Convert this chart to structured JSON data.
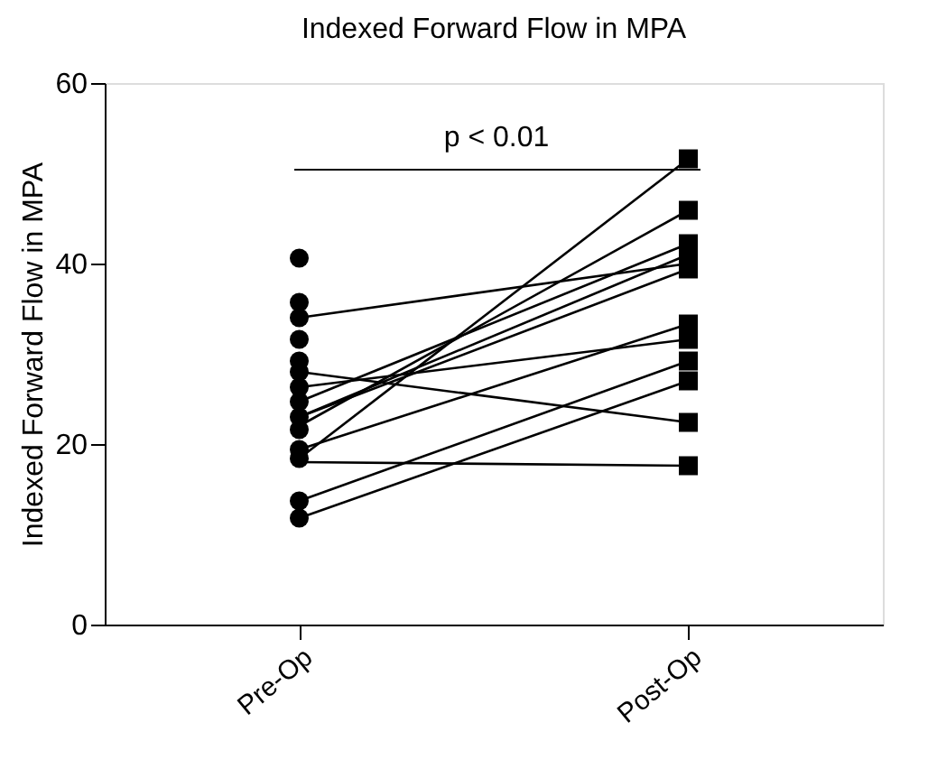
{
  "chart_data": {
    "type": "line",
    "title": "Indexed Forward Flow in MPA",
    "ylabel": "Indexed Forward Flow in MPA",
    "categories": [
      "Pre-Op",
      "Post-Op"
    ],
    "ylim": [
      0,
      60
    ],
    "yticks": [
      0,
      20,
      40,
      60
    ],
    "grid": false,
    "annotations": [
      "p < 0.01"
    ],
    "series": [
      {
        "color": "#000000",
        "marker": "none",
        "values": [
          34,
          40
        ]
      },
      {
        "color": "#000000",
        "marker": "none",
        "values": [
          28,
          22.4
        ]
      },
      {
        "color": "#000000",
        "marker": "none",
        "values": [
          26.3,
          31.6
        ]
      },
      {
        "color": "#000000",
        "marker": "none",
        "values": [
          24.7,
          42.2
        ]
      },
      {
        "color": "#000000",
        "marker": "none",
        "values": [
          23,
          41
        ]
      },
      {
        "color": "#000000",
        "marker": "none",
        "values": [
          23,
          39.4
        ]
      },
      {
        "color": "#000000",
        "marker": "none",
        "values": [
          22,
          45.9
        ]
      },
      {
        "color": "#000000",
        "marker": "none",
        "values": [
          19.4,
          33.3
        ]
      },
      {
        "color": "#000000",
        "marker": "none",
        "values": [
          18.4,
          51.6
        ]
      },
      {
        "color": "#000000",
        "marker": "none",
        "values": [
          18,
          17.6
        ]
      },
      {
        "color": "#000000",
        "marker": "none",
        "values": [
          13.7,
          29.2
        ]
      },
      {
        "color": "#000000",
        "marker": "none",
        "values": [
          11.8,
          27
        ]
      },
      {
        "type": "scatter",
        "color": "#000000",
        "marker": "circle",
        "x": [
          "Pre-Op",
          "Pre-Op",
          "Pre-Op",
          "Pre-Op",
          "Pre-Op",
          "Pre-Op",
          "Pre-Op",
          "Pre-Op",
          "Pre-Op",
          "Pre-Op",
          "Pre-Op",
          "Pre-Op",
          "Pre-Op",
          "Pre-Op"
        ],
        "values": [
          40.6,
          35.7,
          34,
          31.6,
          29.2,
          28,
          26.3,
          24.7,
          23,
          21.6,
          19.4,
          18.4,
          13.7,
          11.8
        ]
      },
      {
        "type": "scatter",
        "color": "#000000",
        "marker": "square",
        "x": [
          "Post-Op",
          "Post-Op",
          "Post-Op",
          "Post-Op",
          "Post-Op",
          "Post-Op",
          "Post-Op",
          "Post-Op",
          "Post-Op",
          "Post-Op",
          "Post-Op"
        ],
        "values": [
          51.6,
          45.9,
          42.2,
          41,
          39.4,
          33.3,
          31.6,
          29.2,
          27,
          22.4,
          17.6
        ]
      }
    ]
  }
}
